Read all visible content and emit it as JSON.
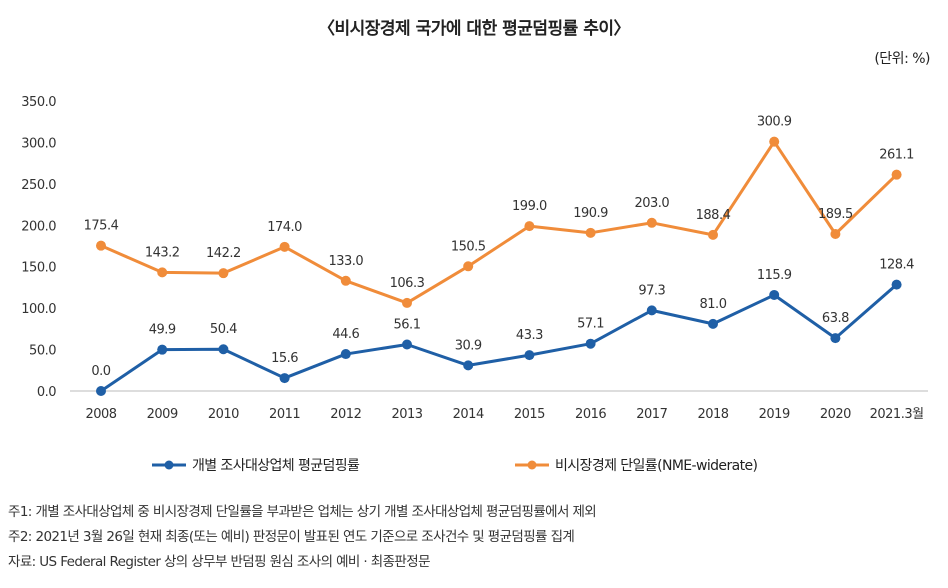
{
  "title": "〈비시장경제 국가에 대한 평균덤핑률 추이〉",
  "unit": "(단위: %)",
  "notes": [
    "주1: 개별 조사대상업체 중 비시장경제 단일률을 부과받은 업체는 상기 개별 조사대상업체 평균덤핑률에서 제외",
    "주2: 2021년 3월 26일 현재 최종(또는 예비) 판정문이 발표된 연도 기준으로 조사건수 및 평균덤핑률 집계",
    "자료: US Federal Register 상의 상무부 반덤핑 원심 조사의 예비 · 최종판정문"
  ],
  "chart_data": {
    "type": "line",
    "title": "〈비시장경제 국가에 대한 평균덤핑률 추이〉",
    "categories": [
      "2008",
      "2009",
      "2010",
      "2011",
      "2012",
      "2013",
      "2014",
      "2015",
      "2016",
      "2017",
      "2018",
      "2019",
      "2020",
      "2021.3월"
    ],
    "yticks": [
      "0.0",
      "50.0",
      "100.0",
      "150.0",
      "200.0",
      "250.0",
      "300.0",
      "350.0"
    ],
    "ylim": [
      0,
      350
    ],
    "grid": false,
    "legend_placement": "bottom",
    "series": [
      {
        "name": "개별 조사대상업체 평균덤핑률",
        "color": "#1F5FA6",
        "values": [
          0.0,
          49.9,
          50.4,
          15.6,
          44.6,
          56.1,
          30.9,
          43.3,
          57.1,
          97.3,
          81.0,
          115.9,
          63.8,
          128.4
        ],
        "labels": [
          "0.0",
          "49.9",
          "50.4",
          "15.6",
          "44.6",
          "56.1",
          "30.9",
          "43.3",
          "57.1",
          "97.3",
          "81.0",
          "115.9",
          "63.8",
          "128.4"
        ]
      },
      {
        "name": "비시장경제 단일률(NME-widerate)",
        "color": "#F08C3A",
        "values": [
          175.4,
          143.2,
          142.2,
          174.0,
          133.0,
          106.3,
          150.5,
          199.0,
          190.9,
          203.0,
          188.4,
          300.9,
          189.5,
          261.1
        ],
        "labels": [
          "175.4",
          "143.2",
          "142.2",
          "174.0",
          "133.0",
          "106.3",
          "150.5",
          "199.0",
          "190.9",
          "203.0",
          "188.4",
          "300.9",
          "189.5",
          "261.1"
        ]
      }
    ]
  }
}
